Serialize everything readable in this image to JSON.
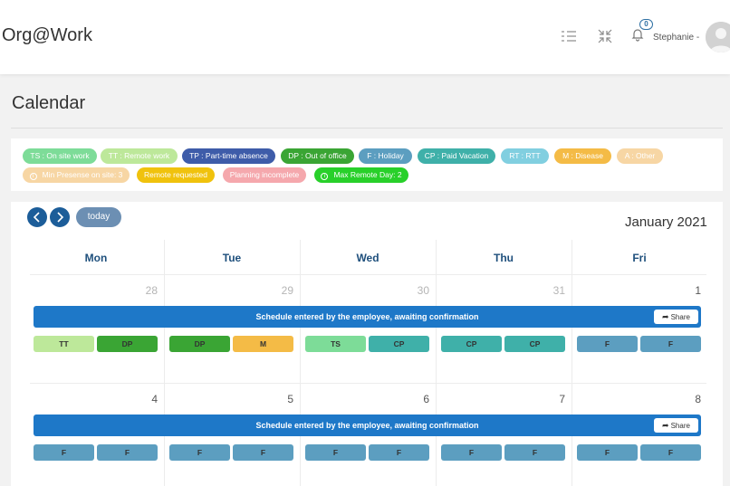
{
  "app": {
    "title": "Org@Work"
  },
  "header": {
    "notifications_count": "0",
    "user_name": "Stephanie -",
    "icons": [
      "list-icon",
      "compress-icon",
      "bell-icon",
      "avatar"
    ]
  },
  "page": {
    "title": "Calendar"
  },
  "legend": [
    {
      "text": "TS : On site work",
      "color": "#7ddc98"
    },
    {
      "text": "TT : Remote work",
      "color": "#bde89a"
    },
    {
      "text": "TP : Part-time absence",
      "color": "#3e5ca9"
    },
    {
      "text": "DP : Out of office",
      "color": "#3aa534"
    },
    {
      "text": "F : Holiday",
      "color": "#5c9ec0"
    },
    {
      "text": "CP : Paid Vacation",
      "color": "#3fb0a9"
    },
    {
      "text": "RT : RTT",
      "color": "#81cfe0"
    },
    {
      "text": "M : Disease",
      "color": "#f4bb46"
    },
    {
      "text": "A : Other",
      "color": "#f7d6a4"
    }
  ],
  "indicators": [
    {
      "text": "Min Presense on site: 3",
      "color": "#f7d6a4",
      "icon": "info-icon"
    },
    {
      "text": "Remote requested",
      "color": "#f0c20d",
      "icon": ""
    },
    {
      "text": "Planning incomplete",
      "color": "#f5a8ad",
      "icon": ""
    },
    {
      "text": "Max Remote Day: 2",
      "color": "#28d02a",
      "icon": "info-icon"
    }
  ],
  "calendar": {
    "today_label": "today",
    "month_label": "January 2021",
    "days": [
      "Mon",
      "Tue",
      "Wed",
      "Thu",
      "Fri"
    ],
    "weeks": [
      {
        "dates": [
          "28",
          "29",
          "30",
          "31",
          "1"
        ],
        "other_month": [
          true,
          true,
          true,
          true,
          false
        ],
        "banner": "Schedule entered by the employee, awaiting confirmation",
        "share_label": "Share",
        "slots": [
          [
            "TT",
            "DP"
          ],
          [
            "DP",
            "M"
          ],
          [
            "TS",
            "CP"
          ],
          [
            "CP",
            "CP"
          ],
          [
            "F",
            "F"
          ]
        ]
      },
      {
        "dates": [
          "4",
          "5",
          "6",
          "7",
          "8"
        ],
        "other_month": [
          false,
          false,
          false,
          false,
          false
        ],
        "banner": "Schedule entered by the employee, awaiting confirmation",
        "share_label": "Share",
        "slots": [
          [
            "F",
            "F"
          ],
          [
            "F",
            "F"
          ],
          [
            "F",
            "F"
          ],
          [
            "F",
            "F"
          ],
          [
            "F",
            "F"
          ]
        ]
      }
    ],
    "slot_colors": {
      "TS": "#7ddc98",
      "TT": "#bde89a",
      "TP": "#3e5ca9",
      "DP": "#3aa534",
      "F": "#5c9ec0",
      "CP": "#3fb0a9",
      "RT": "#81cfe0",
      "M": "#f4bb46",
      "A": "#f7d6a4"
    }
  }
}
